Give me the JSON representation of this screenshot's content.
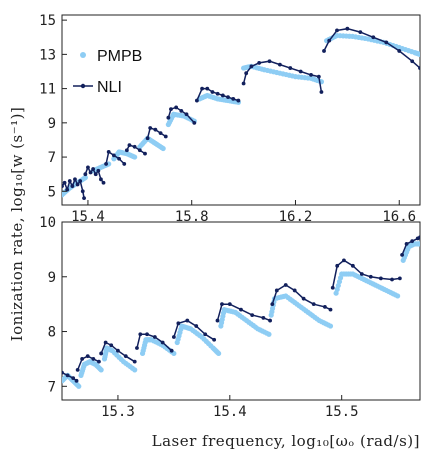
{
  "colors": {
    "pmpb": "#8ecdf4",
    "nli": "#12205c",
    "axis": "#222222"
  },
  "chart_data": [
    {
      "type": "scatter",
      "id": "top",
      "xlim": [
        15.3,
        16.68
      ],
      "ylim": [
        4.2,
        15.3
      ],
      "xticks": [
        15.4,
        15.8,
        16.2,
        16.6
      ],
      "xtick_labels": [
        "15.4",
        "15.8",
        "16.2",
        "16.6"
      ],
      "yticks": [
        5,
        7,
        9,
        11,
        13,
        15
      ],
      "ytick_labels": [
        "5",
        "7",
        "9",
        "11",
        "13",
        "15"
      ],
      "legend": {
        "position": "top-left",
        "entries": [
          "PMPB",
          "NLI"
        ]
      },
      "series": [
        {
          "name": "PMPB",
          "style": "dots",
          "segments": [
            [
              [
                15.3,
                4.8
              ],
              [
                15.33,
                5.2
              ],
              [
                15.36,
                5.5
              ],
              [
                15.39,
                5.8
              ]
            ],
            [
              [
                15.42,
                6.2
              ],
              [
                15.45,
                6.4
              ],
              [
                15.48,
                6.6
              ]
            ],
            [
              [
                15.5,
                6.9
              ],
              [
                15.52,
                7.3
              ],
              [
                15.55,
                7.2
              ],
              [
                15.58,
                7.0
              ]
            ],
            [
              [
                15.6,
                7.6
              ],
              [
                15.63,
                8.1
              ],
              [
                15.66,
                7.8
              ],
              [
                15.69,
                7.5
              ]
            ],
            [
              [
                15.71,
                8.9
              ],
              [
                15.73,
                9.5
              ],
              [
                15.77,
                9.4
              ],
              [
                15.81,
                9.1
              ]
            ],
            [
              [
                15.83,
                10.4
              ],
              [
                15.86,
                10.6
              ],
              [
                15.9,
                10.4
              ],
              [
                15.94,
                10.3
              ],
              [
                15.98,
                10.2
              ]
            ],
            [
              [
                16.0,
                12.2
              ],
              [
                16.03,
                12.3
              ],
              [
                16.08,
                12.1
              ],
              [
                16.14,
                11.9
              ],
              [
                16.2,
                11.7
              ],
              [
                16.26,
                11.6
              ],
              [
                16.3,
                11.4
              ]
            ],
            [
              [
                16.32,
                13.8
              ],
              [
                16.36,
                14.1
              ],
              [
                16.42,
                14.05
              ],
              [
                16.48,
                13.9
              ],
              [
                16.54,
                13.7
              ],
              [
                16.6,
                13.4
              ],
              [
                16.66,
                13.1
              ],
              [
                16.68,
                13.0
              ]
            ]
          ]
        },
        {
          "name": "NLI",
          "style": "line-markers",
          "segments": [
            [
              [
                15.3,
                5.3
              ],
              [
                15.31,
                5.5
              ],
              [
                15.32,
                5.1
              ],
              [
                15.33,
                5.6
              ],
              [
                15.34,
                5.3
              ],
              [
                15.35,
                5.7
              ],
              [
                15.36,
                5.4
              ],
              [
                15.37,
                5.6
              ],
              [
                15.38,
                5.0
              ],
              [
                15.385,
                4.6
              ]
            ],
            [
              [
                15.39,
                6.0
              ],
              [
                15.4,
                6.4
              ],
              [
                15.41,
                6.1
              ],
              [
                15.42,
                6.3
              ],
              [
                15.43,
                6.0
              ],
              [
                15.44,
                6.2
              ],
              [
                15.45,
                5.7
              ],
              [
                15.46,
                5.5
              ]
            ],
            [
              [
                15.47,
                6.6
              ],
              [
                15.48,
                7.3
              ],
              [
                15.5,
                7.1
              ],
              [
                15.52,
                6.9
              ],
              [
                15.54,
                6.6
              ]
            ],
            [
              [
                15.55,
                7.4
              ],
              [
                15.56,
                7.7
              ],
              [
                15.58,
                7.6
              ],
              [
                15.6,
                7.4
              ],
              [
                15.62,
                7.2
              ]
            ],
            [
              [
                15.63,
                8.1
              ],
              [
                15.64,
                8.7
              ],
              [
                15.66,
                8.6
              ],
              [
                15.68,
                8.4
              ],
              [
                15.7,
                8.2
              ]
            ],
            [
              [
                15.71,
                9.3
              ],
              [
                15.72,
                9.8
              ],
              [
                15.74,
                9.9
              ],
              [
                15.76,
                9.7
              ],
              [
                15.78,
                9.5
              ],
              [
                15.81,
                9.0
              ]
            ],
            [
              [
                15.82,
                10.3
              ],
              [
                15.84,
                11.0
              ],
              [
                15.86,
                11.0
              ],
              [
                15.88,
                10.8
              ],
              [
                15.9,
                10.7
              ],
              [
                15.92,
                10.6
              ],
              [
                15.94,
                10.5
              ],
              [
                15.96,
                10.4
              ],
              [
                15.98,
                10.3
              ]
            ],
            [
              [
                16.0,
                11.3
              ],
              [
                16.01,
                11.9
              ],
              [
                16.03,
                12.3
              ],
              [
                16.06,
                12.5
              ],
              [
                16.1,
                12.6
              ],
              [
                16.14,
                12.4
              ],
              [
                16.18,
                12.2
              ],
              [
                16.22,
                12.0
              ],
              [
                16.26,
                11.8
              ],
              [
                16.29,
                11.7
              ],
              [
                16.3,
                10.8
              ]
            ],
            [
              [
                16.31,
                13.2
              ],
              [
                16.33,
                13.8
              ],
              [
                16.36,
                14.4
              ],
              [
                16.4,
                14.5
              ],
              [
                16.45,
                14.3
              ],
              [
                16.5,
                14.0
              ],
              [
                16.55,
                13.7
              ],
              [
                16.6,
                13.2
              ],
              [
                16.65,
                12.6
              ],
              [
                16.68,
                12.2
              ]
            ]
          ]
        }
      ]
    },
    {
      "type": "scatter",
      "id": "bottom",
      "xlim": [
        15.25,
        15.57
      ],
      "ylim": [
        6.75,
        10.0
      ],
      "xticks": [
        15.3,
        15.4,
        15.5
      ],
      "xtick_labels": [
        "15.3",
        "15.4",
        "15.5"
      ],
      "yticks": [
        7,
        8,
        9,
        10
      ],
      "ytick_labels": [
        "7",
        "8",
        "9",
        "10"
      ],
      "series": [
        {
          "name": "PMPB",
          "style": "dots",
          "segments": [
            [
              [
                15.25,
                7.1
              ],
              [
                15.255,
                7.2
              ],
              [
                15.26,
                7.1
              ],
              [
                15.265,
                7.0
              ]
            ],
            [
              [
                15.267,
                7.2
              ],
              [
                15.27,
                7.4
              ],
              [
                15.275,
                7.45
              ],
              [
                15.28,
                7.4
              ],
              [
                15.285,
                7.3
              ]
            ],
            [
              [
                15.288,
                7.5
              ],
              [
                15.29,
                7.7
              ],
              [
                15.295,
                7.65
              ],
              [
                15.305,
                7.45
              ],
              [
                15.315,
                7.3
              ]
            ],
            [
              [
                15.322,
                7.6
              ],
              [
                15.325,
                7.85
              ],
              [
                15.33,
                7.85
              ],
              [
                15.34,
                7.75
              ],
              [
                15.35,
                7.6
              ]
            ],
            [
              [
                15.353,
                7.8
              ],
              [
                15.357,
                8.1
              ],
              [
                15.365,
                8.05
              ],
              [
                15.375,
                7.9
              ],
              [
                15.385,
                7.7
              ],
              [
                15.39,
                7.6
              ]
            ],
            [
              [
                15.392,
                8.1
              ],
              [
                15.395,
                8.4
              ],
              [
                15.405,
                8.35
              ],
              [
                15.415,
                8.2
              ],
              [
                15.425,
                8.05
              ],
              [
                15.435,
                7.95
              ]
            ],
            [
              [
                15.437,
                8.3
              ],
              [
                15.44,
                8.6
              ],
              [
                15.45,
                8.65
              ],
              [
                15.46,
                8.5
              ],
              [
                15.47,
                8.35
              ],
              [
                15.48,
                8.2
              ],
              [
                15.49,
                8.1
              ]
            ],
            [
              [
                15.495,
                8.7
              ],
              [
                15.5,
                9.05
              ],
              [
                15.51,
                9.05
              ],
              [
                15.52,
                8.95
              ],
              [
                15.53,
                8.85
              ],
              [
                15.54,
                8.75
              ],
              [
                15.55,
                8.65
              ]
            ],
            [
              [
                15.555,
                9.3
              ],
              [
                15.56,
                9.55
              ],
              [
                15.565,
                9.6
              ],
              [
                15.57,
                9.6
              ]
            ]
          ]
        },
        {
          "name": "NLI",
          "style": "line-markers",
          "segments": [
            [
              [
                15.25,
                7.25
              ],
              [
                15.255,
                7.2
              ],
              [
                15.26,
                7.15
              ],
              [
                15.263,
                7.1
              ]
            ],
            [
              [
                15.264,
                7.3
              ],
              [
                15.268,
                7.5
              ],
              [
                15.273,
                7.55
              ],
              [
                15.278,
                7.5
              ],
              [
                15.283,
                7.45
              ]
            ],
            [
              [
                15.285,
                7.6
              ],
              [
                15.289,
                7.8
              ],
              [
                15.294,
                7.75
              ],
              [
                15.3,
                7.65
              ],
              [
                15.307,
                7.55
              ],
              [
                15.315,
                7.45
              ]
            ],
            [
              [
                15.317,
                7.7
              ],
              [
                15.32,
                7.95
              ],
              [
                15.326,
                7.95
              ],
              [
                15.333,
                7.9
              ],
              [
                15.34,
                7.8
              ],
              [
                15.348,
                7.65
              ]
            ],
            [
              [
                15.35,
                7.9
              ],
              [
                15.354,
                8.15
              ],
              [
                15.362,
                8.2
              ],
              [
                15.37,
                8.1
              ],
              [
                15.378,
                7.95
              ],
              [
                15.386,
                7.85
              ]
            ],
            [
              [
                15.389,
                8.2
              ],
              [
                15.393,
                8.5
              ],
              [
                15.4,
                8.5
              ],
              [
                15.41,
                8.4
              ],
              [
                15.42,
                8.3
              ],
              [
                15.43,
                8.25
              ],
              [
                15.436,
                8.2
              ]
            ],
            [
              [
                15.438,
                8.5
              ],
              [
                15.442,
                8.75
              ],
              [
                15.45,
                8.85
              ],
              [
                15.458,
                8.75
              ],
              [
                15.466,
                8.6
              ],
              [
                15.475,
                8.5
              ],
              [
                15.485,
                8.45
              ],
              [
                15.49,
                8.4
              ]
            ],
            [
              [
                15.492,
                8.8
              ],
              [
                15.496,
                9.2
              ],
              [
                15.502,
                9.3
              ],
              [
                15.51,
                9.2
              ],
              [
                15.518,
                9.05
              ],
              [
                15.526,
                9.0
              ],
              [
                15.535,
                8.97
              ],
              [
                15.545,
                8.95
              ],
              [
                15.552,
                8.97
              ]
            ],
            [
              [
                15.554,
                9.4
              ],
              [
                15.558,
                9.6
              ],
              [
                15.563,
                9.65
              ],
              [
                15.568,
                9.7
              ],
              [
                15.57,
                9.72
              ]
            ]
          ]
        }
      ]
    }
  ],
  "ylabel": "Ionization rate, log₁₀[w (s⁻¹)]",
  "xlabel": "Laser frequency, log₁₀[ωₒ (rad/s)]",
  "legend": {
    "pmpb": "PMPB",
    "nli": "NLI"
  }
}
